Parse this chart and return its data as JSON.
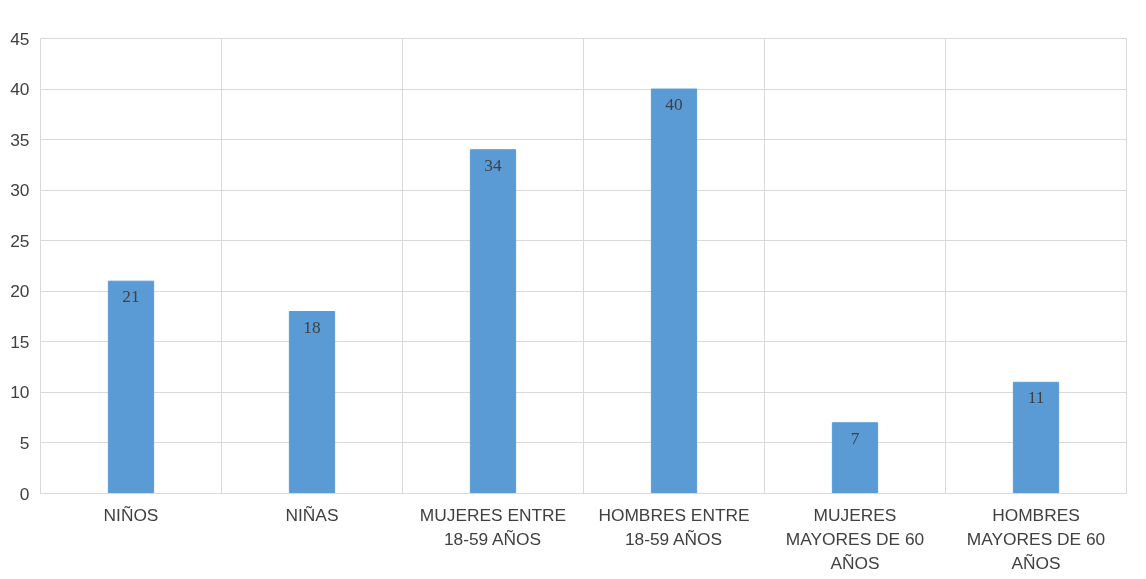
{
  "chart_data": {
    "type": "bar",
    "categories": [
      "NIÑOS",
      "NIÑAS",
      "MUJERES ENTRE 18-59 AÑOS",
      "HOMBRES ENTRE 18-59 AÑOS",
      "MUJERES MAYORES DE 60 AÑOS",
      "HOMBRES MAYORES DE 60 AÑOS"
    ],
    "values": [
      21,
      18,
      34,
      40,
      7,
      11
    ],
    "color": "#5b9bd5",
    "ylim": [
      0,
      45
    ],
    "yticks": [
      0,
      5,
      10,
      15,
      20,
      25,
      30,
      35,
      40,
      45
    ],
    "grid": true,
    "data_labels": true
  }
}
